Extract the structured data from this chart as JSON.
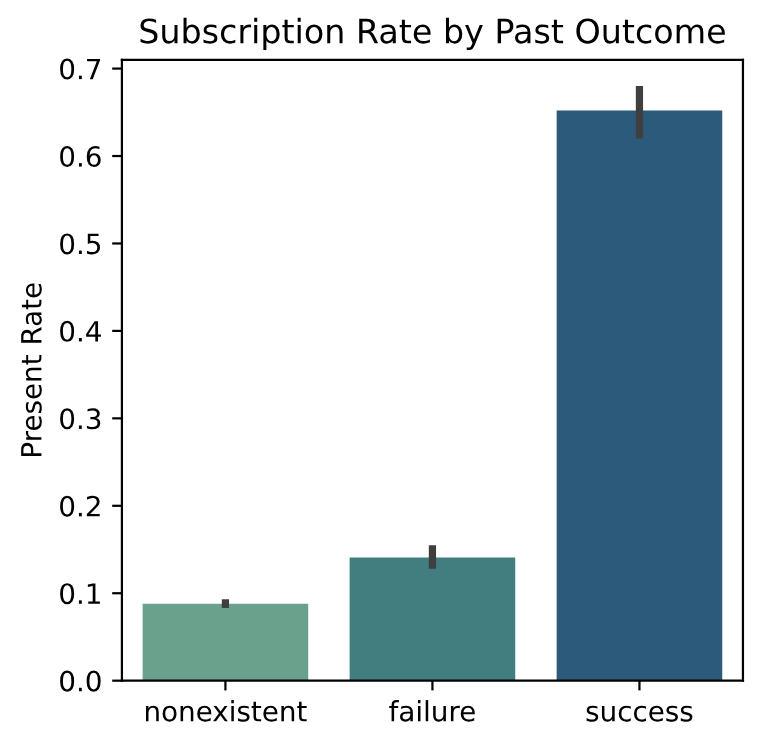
{
  "chart_data": {
    "type": "bar",
    "title": "Subscription Rate by Past Outcome",
    "ylabel": "Present Rate",
    "categories": [
      "nonexistent",
      "failure",
      "success"
    ],
    "values": [
      0.088,
      0.141,
      0.652
    ],
    "colors": [
      "#69a18d",
      "#427d80",
      "#2c5a7a"
    ],
    "errors": [
      [
        0.083,
        0.093
      ],
      [
        0.128,
        0.155
      ],
      [
        0.62,
        0.68
      ]
    ],
    "ylim": [
      0,
      0.71
    ],
    "yticks": [
      {
        "value": 0,
        "label": "0.0"
      },
      0.1,
      0.2,
      0.3,
      0.4,
      0.5,
      0.6,
      0.7
    ],
    "grid": false
  }
}
